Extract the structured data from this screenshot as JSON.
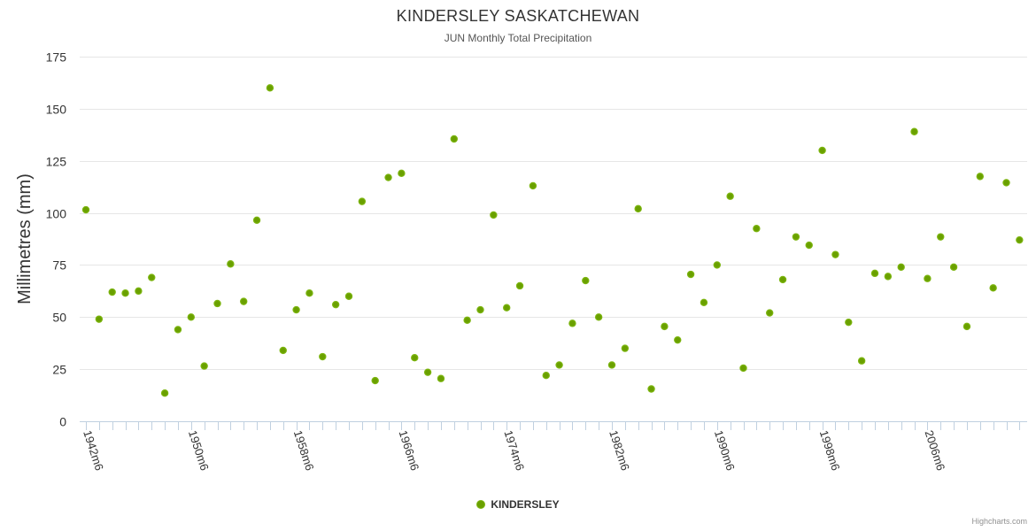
{
  "chart_data": {
    "type": "scatter",
    "title": "KINDERSLEY SASKATCHEWAN",
    "subtitle": "JUN Monthly Total Precipitation",
    "ylabel": "Millimetres (mm)",
    "xlabel": "",
    "ylim": [
      0,
      175
    ],
    "yticks": [
      0,
      25,
      50,
      75,
      100,
      125,
      150,
      175
    ],
    "x_start_year": 1942,
    "x_end_year": 2013,
    "xtick_labels": [
      {
        "year": 1942,
        "label": "1942m6"
      },
      {
        "year": 1950,
        "label": "1950m6"
      },
      {
        "year": 1958,
        "label": "1958m6"
      },
      {
        "year": 1966,
        "label": "1966m6"
      },
      {
        "year": 1974,
        "label": "1974m6"
      },
      {
        "year": 1982,
        "label": "1982m6"
      },
      {
        "year": 1990,
        "label": "1990m6"
      },
      {
        "year": 1998,
        "label": "1998m6"
      },
      {
        "year": 2006,
        "label": "2006m6"
      }
    ],
    "grid": true,
    "legend_position": "bottom-center",
    "series": [
      {
        "name": "KINDERSLEY",
        "color": "#7cb50f",
        "marker_fill": "#6aa000",
        "marker_border": "#4d7a00",
        "x": [
          1942,
          1943,
          1944,
          1945,
          1946,
          1947,
          1948,
          1949,
          1950,
          1951,
          1952,
          1953,
          1954,
          1955,
          1956,
          1957,
          1958,
          1959,
          1960,
          1961,
          1962,
          1963,
          1964,
          1965,
          1966,
          1967,
          1968,
          1969,
          1970,
          1971,
          1972,
          1973,
          1974,
          1975,
          1976,
          1977,
          1978,
          1979,
          1980,
          1981,
          1982,
          1983,
          1984,
          1985,
          1986,
          1987,
          1988,
          1989,
          1990,
          1991,
          1992,
          1993,
          1994,
          1995,
          1996,
          1997,
          1998,
          1999,
          2000,
          2001,
          2002,
          2003,
          2004,
          2005,
          2006,
          2007,
          2008,
          2009,
          2010,
          2011,
          2012,
          2013
        ],
        "values": [
          101.5,
          49,
          62,
          61.5,
          62.5,
          69,
          13.5,
          44,
          50,
          26.5,
          56.5,
          75.5,
          57.5,
          96.5,
          160,
          34,
          53.5,
          61.5,
          31,
          56,
          60,
          105.5,
          19.5,
          117,
          119,
          30.5,
          23.5,
          20.5,
          135.5,
          48.5,
          53.5,
          99,
          54.5,
          65,
          113,
          22,
          27,
          47,
          67.5,
          50,
          27,
          35,
          102,
          15.5,
          45.5,
          39,
          70.5,
          57,
          75,
          108,
          25.5,
          92.5,
          52,
          68,
          88.5,
          84.5,
          130,
          80,
          47.5,
          29,
          71,
          69.5,
          74,
          139,
          68.5,
          88.5,
          74,
          45.5,
          117.5,
          64,
          114.5,
          87
        ]
      }
    ]
  },
  "credits": "Highcharts.com"
}
